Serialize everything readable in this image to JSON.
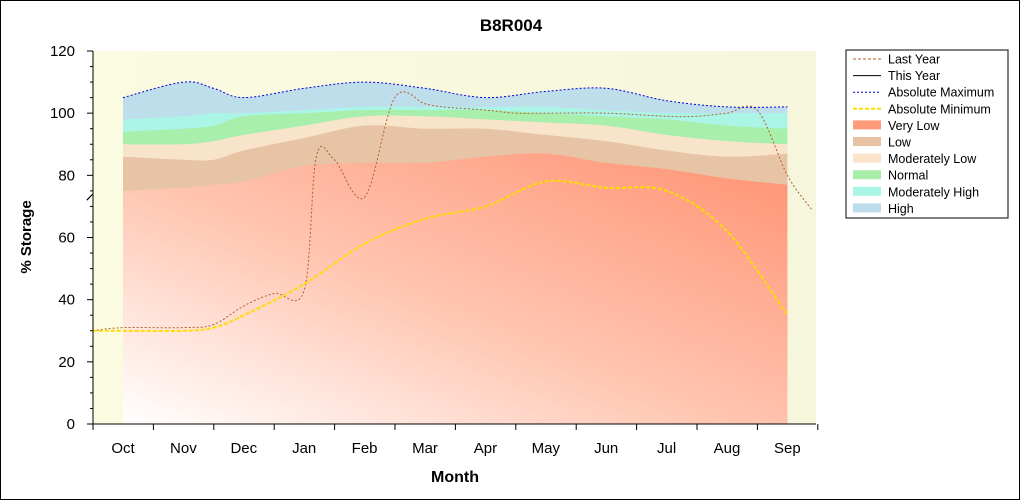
{
  "chart_data": {
    "type": "area",
    "title": "B8R004",
    "xlabel": "Month",
    "ylabel": "% Storage",
    "ylim": [
      0,
      120
    ],
    "yticks": [
      0,
      20,
      40,
      60,
      80,
      100,
      120
    ],
    "categories": [
      "Oct",
      "Nov",
      "Dec",
      "Jan",
      "Feb",
      "Mar",
      "Apr",
      "May",
      "Jun",
      "Jul",
      "Aug",
      "Sep"
    ],
    "grid": false,
    "legend_position": "top-right",
    "bands": [
      {
        "name": "Very Low",
        "color": "#ff9a7a",
        "x": [
          0,
          1,
          1.5,
          2,
          3,
          4,
          5,
          6,
          7,
          8,
          9,
          10,
          11
        ],
        "lower": [
          0,
          0,
          0,
          0,
          0,
          0,
          0,
          0,
          0,
          0,
          0,
          0,
          0
        ],
        "upper": [
          75,
          76,
          77,
          78,
          83,
          84,
          84,
          86,
          87,
          84,
          82,
          79,
          77
        ]
      },
      {
        "name": "Low",
        "color": "#e6c2a2",
        "x": [
          0,
          1,
          1.5,
          2,
          3,
          4,
          5,
          6,
          7,
          8,
          9,
          10,
          11
        ],
        "upper": [
          86,
          85,
          85,
          88,
          92,
          96,
          95,
          95,
          93,
          91,
          88,
          86,
          87
        ]
      },
      {
        "name": "Moderately Low",
        "color": "#fce3cc",
        "x": [
          0,
          1,
          1.5,
          2,
          3,
          4,
          5,
          6,
          7,
          8,
          9,
          10,
          11
        ],
        "upper": [
          90,
          90,
          91,
          93,
          96,
          99,
          99,
          98,
          97,
          96,
          93,
          91,
          90
        ]
      },
      {
        "name": "Normal",
        "color": "#a8eea8",
        "x": [
          0,
          1,
          1.5,
          2,
          3,
          4,
          5,
          6,
          7,
          8,
          9,
          10,
          11
        ],
        "upper": [
          94,
          95,
          96,
          99,
          100,
          101,
          101,
          101,
          100,
          99,
          98,
          96,
          95
        ]
      },
      {
        "name": "Moderately High",
        "color": "#aaf6e6",
        "x": [
          0,
          1,
          1.5,
          2,
          3,
          4,
          5,
          6,
          7,
          8,
          9,
          10,
          11
        ],
        "upper": [
          98,
          99,
          100,
          100,
          101,
          102,
          102,
          102,
          102,
          101,
          100,
          100,
          100
        ]
      },
      {
        "name": "High",
        "color": "#bcdcec",
        "x": [
          0,
          1,
          1.5,
          2,
          3,
          4,
          5,
          6,
          7,
          8,
          9,
          10,
          11
        ],
        "upper": [
          105,
          110,
          108,
          105,
          108,
          110,
          108,
          105,
          107,
          108,
          104,
          102,
          102
        ]
      }
    ],
    "series": [
      {
        "name": "Last Year",
        "style": "dotted",
        "color": "#b06030",
        "x": [
          -0.5,
          0,
          1,
          1.5,
          2,
          2.5,
          3,
          3.2,
          3.5,
          4,
          4.5,
          5,
          5.3,
          6,
          6.5,
          7,
          8,
          9,
          9.5,
          10,
          10.5,
          11,
          11.4
        ],
        "y": [
          30,
          31,
          31,
          32,
          38,
          42,
          43,
          86,
          85,
          73,
          105,
          103,
          102,
          101,
          100,
          100,
          100,
          99,
          99,
          100,
          101,
          80,
          69
        ]
      },
      {
        "name": "This Year",
        "style": "solid",
        "color": "#000000",
        "x": [
          -0.6,
          -0.5
        ],
        "y": [
          72,
          74
        ]
      },
      {
        "name": "Absolute Maximum",
        "style": "dotted",
        "color": "#0000cc",
        "x": [
          0,
          1,
          1.5,
          2,
          3,
          4,
          5,
          6,
          7,
          8,
          9,
          10,
          11
        ],
        "y": [
          105,
          110,
          108,
          105,
          108,
          110,
          108,
          105,
          107,
          108,
          104,
          102,
          102
        ]
      },
      {
        "name": "Absolute Minimum",
        "style": "dashed",
        "color": "#ffdd00",
        "x": [
          -0.5,
          0,
          1,
          1.5,
          2,
          3,
          4,
          5,
          6,
          7,
          8,
          9,
          10,
          11
        ],
        "y": [
          30,
          30,
          30,
          31,
          35,
          45,
          58,
          66,
          70,
          78,
          76,
          75,
          62,
          35
        ]
      }
    ],
    "legend": [
      {
        "label": "Last Year",
        "kind": "line",
        "color": "#b06030",
        "dash": "3,2"
      },
      {
        "label": "This Year",
        "kind": "line",
        "color": "#000000",
        "dash": ""
      },
      {
        "label": "Absolute Maximum",
        "kind": "line",
        "color": "#0000cc",
        "dash": "2,2"
      },
      {
        "label": "Absolute Minimum",
        "kind": "line",
        "color": "#ffdd00",
        "dash": "4,2"
      },
      {
        "label": "Very Low",
        "kind": "swatch",
        "color": "#ff9a7a"
      },
      {
        "label": "Low",
        "kind": "swatch",
        "color": "#e6c2a2"
      },
      {
        "label": "Moderately Low",
        "kind": "swatch",
        "color": "#fce3cc"
      },
      {
        "label": "Normal",
        "kind": "swatch",
        "color": "#a8eea8"
      },
      {
        "label": "Moderately High",
        "kind": "swatch",
        "color": "#aaf6e6"
      },
      {
        "label": "High",
        "kind": "swatch",
        "color": "#bcdcec"
      }
    ]
  }
}
